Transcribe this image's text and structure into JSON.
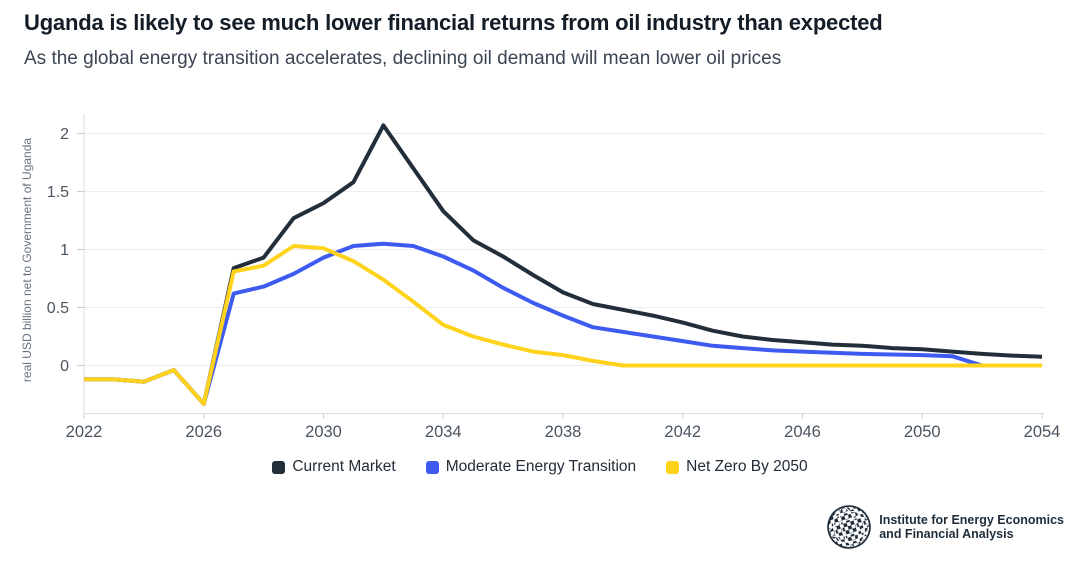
{
  "header": {
    "title": "Uganda is likely to see much lower financial returns from oil industry than expected",
    "subtitle": "As the global energy transition accelerates, declining oil demand will mean lower oil prices"
  },
  "chart_data": {
    "type": "line",
    "title": "",
    "xlabel": "",
    "ylabel": "real USD billion net to Government of Uganda",
    "xlim": [
      2022,
      2054
    ],
    "ylim": [
      -0.43,
      2.17
    ],
    "x_ticks": [
      2022,
      2026,
      2030,
      2034,
      2038,
      2042,
      2046,
      2050,
      2054
    ],
    "y_ticks": [
      0,
      0.5,
      1,
      1.5,
      2
    ],
    "grid": "horizontal",
    "legend_position": "bottom",
    "categories": [
      2022,
      2023,
      2024,
      2025,
      2026,
      2027,
      2028,
      2029,
      2030,
      2031,
      2032,
      2033,
      2034,
      2035,
      2036,
      2037,
      2038,
      2039,
      2040,
      2041,
      2042,
      2043,
      2044,
      2045,
      2046,
      2047,
      2048,
      2049,
      2050,
      2051,
      2052,
      2053,
      2054
    ],
    "series": [
      {
        "name": "Current Market",
        "color": "#222e3a",
        "values": [
          -0.12,
          -0.12,
          -0.14,
          -0.04,
          -0.33,
          0.84,
          0.93,
          1.27,
          1.4,
          1.58,
          2.07,
          1.7,
          1.33,
          1.08,
          0.94,
          0.78,
          0.63,
          0.53,
          0.48,
          0.43,
          0.37,
          0.3,
          0.25,
          0.22,
          0.2,
          0.18,
          0.17,
          0.15,
          0.14,
          0.12,
          0.1,
          0.085,
          0.075
        ]
      },
      {
        "name": "Moderate Energy Transition",
        "color": "#3d5bf0",
        "values": [
          -0.12,
          -0.12,
          -0.14,
          -0.04,
          -0.33,
          0.62,
          0.68,
          0.79,
          0.93,
          1.03,
          1.05,
          1.03,
          0.94,
          0.82,
          0.67,
          0.54,
          0.43,
          0.33,
          0.29,
          0.25,
          0.21,
          0.17,
          0.15,
          0.13,
          0.12,
          0.11,
          0.1,
          0.095,
          0.09,
          0.08,
          0.0,
          null,
          null
        ]
      },
      {
        "name": "Net Zero By 2050",
        "color": "#ffd21c",
        "values": [
          -0.12,
          -0.12,
          -0.14,
          -0.04,
          -0.33,
          0.81,
          0.86,
          1.03,
          1.01,
          0.9,
          0.74,
          0.55,
          0.35,
          0.25,
          0.18,
          0.12,
          0.09,
          0.04,
          0.0,
          0,
          0,
          0,
          0,
          0,
          0,
          0,
          0,
          0,
          0,
          0,
          0,
          0,
          0
        ]
      }
    ]
  },
  "footer": {
    "logo_line1": "Institute for Energy Economics",
    "logo_line2": "and Financial Analysis"
  },
  "colors": {
    "grid": "#ebedf0",
    "axis": "#d9dce1",
    "tick": "#c9ced4",
    "tick_label": "#4b555f",
    "axis_title": "#6a7480"
  }
}
